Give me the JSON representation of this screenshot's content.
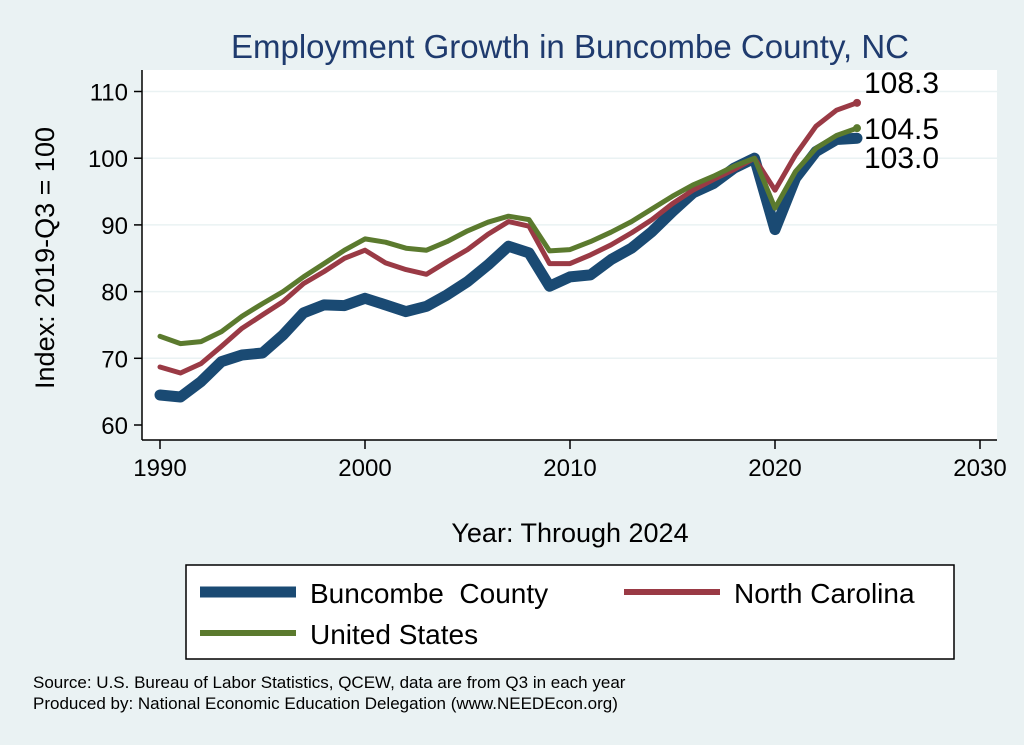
{
  "chart_data": {
    "type": "line",
    "title": "Employment Growth in Buncombe County, NC",
    "xlabel": "Year: Through 2024",
    "ylabel": "Index: 2019-Q3 = 100",
    "xlim": [
      1990,
      2030
    ],
    "ylim": [
      60,
      110
    ],
    "xticks": [
      1990,
      2000,
      2010,
      2020,
      2030
    ],
    "yticks": [
      60,
      70,
      80,
      90,
      100,
      110
    ],
    "grid": true,
    "legend_position": "bottom",
    "x": [
      1990,
      1991,
      1992,
      1993,
      1994,
      1995,
      1996,
      1997,
      1998,
      1999,
      2000,
      2001,
      2002,
      2003,
      2004,
      2005,
      2006,
      2007,
      2008,
      2009,
      2010,
      2011,
      2012,
      2013,
      2014,
      2015,
      2016,
      2017,
      2018,
      2019,
      2020,
      2021,
      2022,
      2023,
      2024
    ],
    "series": [
      {
        "name": "Buncombe  County",
        "color": "#1A4A73",
        "values": [
          64.5,
          64.2,
          66.5,
          69.5,
          70.5,
          70.8,
          73.5,
          76.8,
          78.0,
          77.9,
          79.0,
          78.0,
          77.0,
          77.8,
          79.5,
          81.5,
          84.0,
          86.8,
          85.8,
          80.8,
          82.2,
          82.5,
          84.8,
          86.5,
          89.0,
          92.0,
          94.8,
          96.2,
          98.5,
          100.0,
          89.3,
          97.0,
          101.0,
          102.8,
          103.0
        ],
        "end_label": "103.0"
      },
      {
        "name": "North Carolina",
        "color": "#9A3A45",
        "values": [
          68.7,
          67.8,
          69.2,
          71.8,
          74.5,
          76.5,
          78.5,
          81.2,
          83.0,
          85.0,
          86.2,
          84.3,
          83.3,
          82.6,
          84.5,
          86.3,
          88.6,
          90.5,
          89.8,
          84.2,
          84.2,
          85.5,
          87.0,
          88.8,
          90.8,
          93.2,
          95.2,
          96.8,
          98.3,
          100.0,
          95.2,
          100.5,
          104.8,
          107.2,
          108.3
        ],
        "end_label": "108.3"
      },
      {
        "name": "United States",
        "color": "#5B7A2E",
        "values": [
          73.3,
          72.2,
          72.5,
          74.0,
          76.3,
          78.2,
          80.0,
          82.2,
          84.2,
          86.2,
          87.9,
          87.4,
          86.5,
          86.2,
          87.5,
          89.1,
          90.4,
          91.3,
          90.8,
          86.1,
          86.3,
          87.5,
          88.9,
          90.5,
          92.4,
          94.3,
          96.0,
          97.3,
          98.8,
          100.0,
          92.5,
          98.0,
          101.5,
          103.4,
          104.5
        ],
        "end_label": "104.5"
      }
    ]
  },
  "source_lines": [
    "Source: U.S. Bureau of Labor Statistics, QCEW, data are from Q3 in each year",
    "Produced by: National Economic Education Delegation (www.NEEDEcon.org)"
  ]
}
